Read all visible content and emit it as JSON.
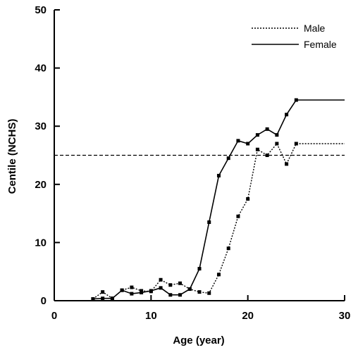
{
  "chart_data": {
    "type": "line",
    "title": "",
    "xlabel": "Age (year)",
    "ylabel": "Centile (NCHS)",
    "xlim": [
      0,
      30
    ],
    "ylim": [
      0,
      50
    ],
    "xticks": [
      "0",
      "10",
      "20",
      "30"
    ],
    "yticks": [
      "0",
      "10",
      "20",
      "30",
      "40",
      "50"
    ],
    "grid": false,
    "legend_position": "top-right",
    "reference_line": {
      "y": 25,
      "style": "dashed"
    },
    "series": [
      {
        "name": "Male",
        "style": "dotted",
        "x": [
          4,
          5,
          6,
          7,
          8,
          9,
          10,
          11,
          12,
          13,
          14,
          15,
          16,
          17,
          18,
          19,
          20,
          21,
          22,
          23,
          24,
          25,
          26,
          30
        ],
        "y": [
          0.3,
          1.5,
          0.4,
          1.8,
          2.3,
          1.7,
          1.6,
          3.6,
          2.7,
          3.0,
          2.0,
          1.5,
          1.3,
          4.5,
          9.0,
          14.5,
          17.5,
          26.0,
          25.0,
          27.0,
          23.5,
          27.0,
          27.0,
          27.0
        ],
        "markers": [
          true,
          true,
          true,
          true,
          true,
          true,
          true,
          true,
          true,
          true,
          true,
          true,
          true,
          true,
          true,
          true,
          true,
          true,
          true,
          true,
          true,
          true,
          false,
          false
        ]
      },
      {
        "name": "Female",
        "style": "solid",
        "x": [
          4,
          5,
          6,
          7,
          8,
          9,
          10,
          11,
          12,
          13,
          14,
          15,
          16,
          17,
          18,
          19,
          20,
          21,
          22,
          23,
          24,
          25,
          30
        ],
        "y": [
          0.3,
          0.4,
          0.4,
          1.8,
          1.2,
          1.4,
          1.7,
          2.2,
          1.0,
          1.0,
          2.0,
          5.5,
          13.5,
          21.5,
          24.5,
          27.5,
          27.0,
          28.5,
          29.5,
          28.5,
          32.0,
          34.5,
          34.5
        ],
        "markers": [
          true,
          true,
          true,
          true,
          true,
          true,
          true,
          true,
          true,
          true,
          true,
          true,
          true,
          true,
          true,
          true,
          true,
          true,
          true,
          true,
          true,
          true,
          false
        ]
      }
    ]
  }
}
